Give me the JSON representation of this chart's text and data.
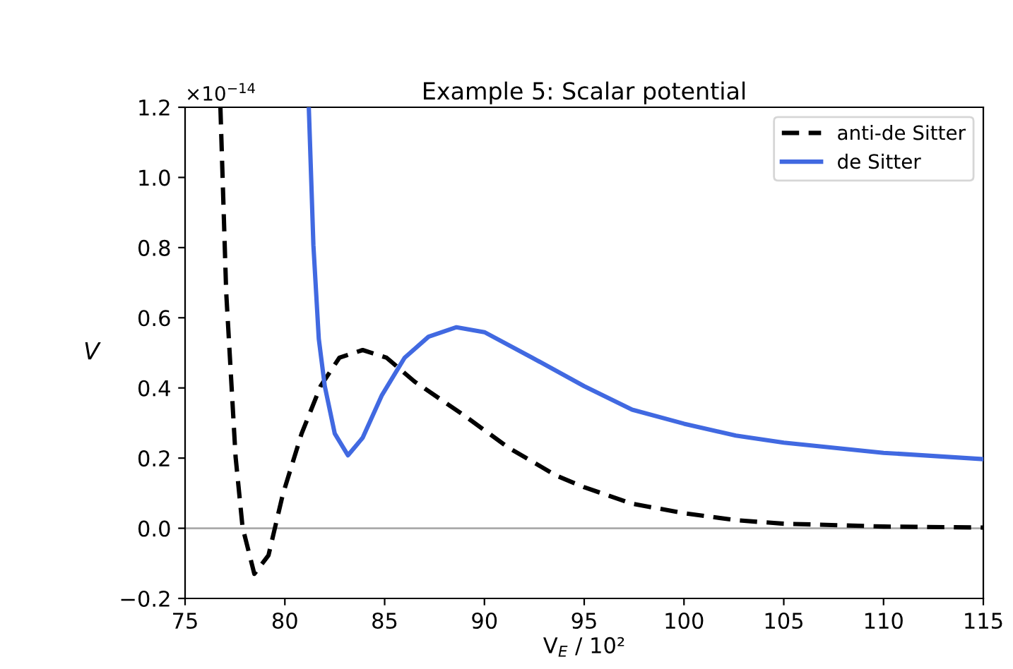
{
  "chart_data": {
    "type": "line",
    "title": "Example 5: Scalar potential",
    "xlabel": "V$_{E}$ / 10²",
    "ylabel": "V",
    "annotations": [
      "×10$^{−14}$"
    ],
    "xlim": [
      75,
      115
    ],
    "xticks": [
      75,
      80,
      85,
      90,
      95,
      100,
      105,
      110,
      115
    ],
    "ylim": [
      -0.2,
      1.2
    ],
    "yticks": [
      {
        "value": -0.2,
        "label": "−0.2"
      },
      {
        "value": 0,
        "label": "0.0"
      },
      {
        "value": 0.2,
        "label": "0.2"
      },
      {
        "value": 0.4,
        "label": "0.4"
      },
      {
        "value": 0.6,
        "label": "0.6"
      },
      {
        "value": 0.8,
        "label": "0.8"
      },
      {
        "value": 1.0,
        "label": "1.0"
      },
      {
        "value": 1.2,
        "label": "1.2"
      }
    ],
    "grid": false,
    "legend": "top right",
    "ref_lines": [
      {
        "axis": "y",
        "value": 0,
        "color": "#aaaaaa"
      }
    ],
    "series": [
      {
        "name": "anti-de Sitter",
        "color": "#000000",
        "line_style": "dashed",
        "x": [
          76.77,
          77.06,
          77.53,
          77.88,
          78.47,
          79.18,
          79.9,
          80.84,
          81.79,
          82.73,
          83.9,
          85.1,
          86.5,
          88.9,
          91.2,
          93.6,
          95.0,
          97.4,
          100,
          102.6,
          105,
          110,
          115
        ],
        "values": [
          1.2,
          0.673,
          0.204,
          0.003,
          -0.13,
          -0.077,
          0.097,
          0.27,
          0.405,
          0.486,
          0.508,
          0.486,
          0.418,
          0.325,
          0.23,
          0.15,
          0.117,
          0.07,
          0.043,
          0.023,
          0.013,
          0.005,
          0.002
        ]
      },
      {
        "name": "de Sitter",
        "color": "#4169e1",
        "line_style": "solid",
        "x": [
          81.2,
          81.43,
          81.7,
          82.0,
          82.5,
          83.16,
          83.9,
          84.85,
          86.0,
          87.2,
          88.6,
          90.0,
          92.4,
          95.0,
          97.4,
          100,
          102.6,
          105,
          110,
          115
        ],
        "values": [
          1.2,
          0.807,
          0.54,
          0.405,
          0.27,
          0.208,
          0.258,
          0.378,
          0.486,
          0.546,
          0.573,
          0.559,
          0.486,
          0.405,
          0.338,
          0.298,
          0.264,
          0.244,
          0.215,
          0.197
        ]
      }
    ]
  }
}
